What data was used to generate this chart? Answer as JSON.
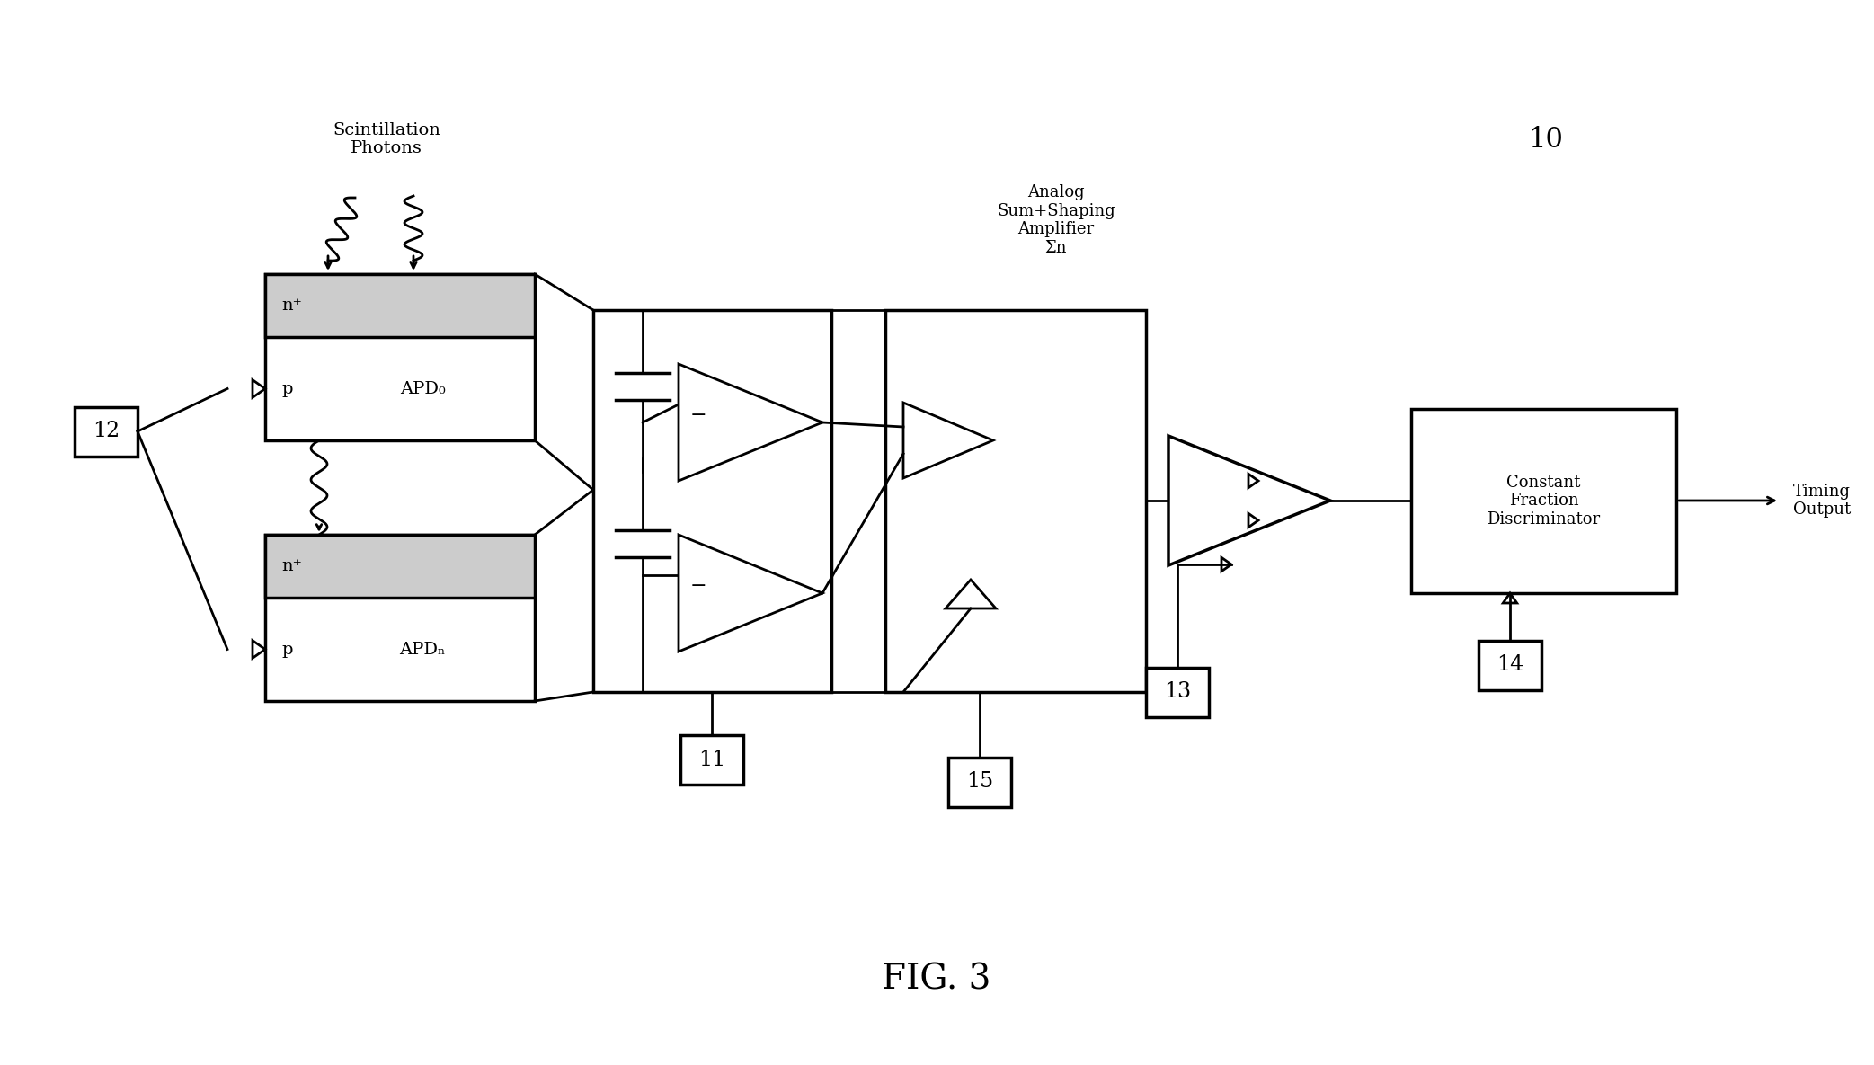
{
  "bg_color": "#ffffff",
  "fig_caption": "FIG. 3",
  "fig_number": "10",
  "photons_text": "Scintillation\nPhotons",
  "analog_text": "Analog\nSum+Shaping\nAmplifier\nΣn",
  "cfd_text": "Constant\nFraction\nDiscriminator",
  "timing_text": "Timing\nOutput",
  "apd0_n": "n⁺",
  "apd0_p": "p",
  "apd0_name": "APD₀",
  "apdn_n": "n⁺",
  "apdn_p": "p",
  "apdn_name": "APDₙ",
  "minus_sign": "−",
  "box12": "12",
  "box11": "11",
  "box13": "13",
  "box14": "14",
  "box15": "15"
}
